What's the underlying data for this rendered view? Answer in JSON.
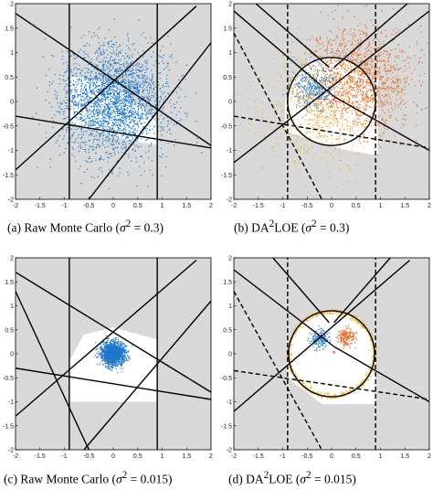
{
  "chart_data": [
    {
      "type": "scatter",
      "caption_prefix": "(a) Raw Monte Carlo (",
      "caption_var": "σ",
      "caption_sup": "2",
      "caption_suffix": " = 0.3)",
      "xlim": [
        -2,
        2
      ],
      "ylim": [
        -2,
        2
      ],
      "xticks": [
        "-2",
        "-1.5",
        "-1",
        "-0.5",
        "0",
        "0.5",
        "1",
        "1.5",
        "2"
      ],
      "yticks": [
        "-2",
        "-1.5",
        "-1",
        "-0.5",
        "0",
        "0.5",
        "1",
        "1.5",
        "2"
      ],
      "shade_color": "#d9d9d9",
      "polygon": [
        [
          -0.9,
          0.52
        ],
        [
          -0.9,
          -0.42
        ],
        [
          0.42,
          -0.82
        ],
        [
          0.9,
          -0.88
        ],
        [
          0.9,
          -0.45
        ],
        [
          0.05,
          0.35
        ]
      ],
      "lines": [
        {
          "p1": [
            -0.9,
            -2
          ],
          "p2": [
            -0.9,
            2
          ],
          "style": "solid"
        },
        {
          "p1": [
            0.9,
            -2
          ],
          "p2": [
            0.9,
            2
          ],
          "style": "solid"
        },
        {
          "p1": [
            -2,
            -0.3
          ],
          "p2": [
            2,
            -0.95
          ],
          "style": "solid"
        },
        {
          "p1": [
            -2,
            1.8
          ],
          "p2": [
            2,
            -0.9
          ],
          "style": "solid"
        },
        {
          "p1": [
            -2,
            -1.4
          ],
          "p2": [
            1.7,
            1.95
          ],
          "style": "solid"
        },
        {
          "p1": [
            -0.5,
            -2
          ],
          "p2": [
            2,
            1.2
          ],
          "style": "solid"
        }
      ],
      "clouds": [
        {
          "color": "#1f77c9",
          "center": [
            0,
            0
          ],
          "std": 0.55,
          "count": 2600,
          "seed": 7
        }
      ],
      "circle": null,
      "marker": null
    },
    {
      "type": "scatter",
      "caption_prefix": "(b) DA",
      "caption_sup_pre": "2",
      "caption_mid": "LOE   (",
      "caption_var": "σ",
      "caption_sup": "2",
      "caption_suffix": " = 0.3)",
      "xlim": [
        -2,
        2
      ],
      "ylim": [
        -2,
        2
      ],
      "xticks": [
        "-2",
        "-1.5",
        "-1",
        "-0.5",
        "0",
        "0.5",
        "1",
        "1.5",
        "2"
      ],
      "yticks": [
        "-2",
        "-1.5",
        "-1",
        "-0.5",
        "0",
        "0.5",
        "1",
        "1.5",
        "2"
      ],
      "shade_color": "#d9d9d9",
      "polygon": [
        [
          -0.95,
          -0.62
        ],
        [
          -0.95,
          0.05
        ],
        [
          0.0,
          0.0
        ],
        [
          0.0,
          0.6
        ],
        [
          0.0,
          0.0
        ],
        [
          0.95,
          0.52
        ],
        [
          0.95,
          -1.1
        ],
        [
          0.3,
          -1.0
        ]
      ],
      "lines": [
        {
          "p1": [
            -0.9,
            -2
          ],
          "p2": [
            -0.9,
            2
          ],
          "style": "dashed"
        },
        {
          "p1": [
            0.9,
            -2
          ],
          "p2": [
            0.9,
            2
          ],
          "style": "dashed"
        },
        {
          "p1": [
            -2,
            -0.3
          ],
          "p2": [
            2,
            -0.95
          ],
          "style": "dashed"
        },
        {
          "p1": [
            -2,
            1.4
          ],
          "p2": [
            -0.2,
            -2
          ],
          "style": "dashed"
        },
        {
          "p1": [
            -2,
            -1.25
          ],
          "p2": [
            2,
            1.85
          ],
          "style": "solid"
        },
        {
          "p1": [
            -2,
            1.85
          ],
          "p2": [
            0.05,
            0.1
          ],
          "style": "solid"
        },
        {
          "p1": [
            0.05,
            0.1
          ],
          "p2": [
            2,
            -1.0
          ],
          "style": "solid"
        },
        {
          "p1": [
            -1.55,
            2
          ],
          "p2": [
            -0.05,
            0.7
          ],
          "style": "solid"
        },
        {
          "p1": [
            1.55,
            2
          ],
          "p2": [
            0.05,
            0.7
          ],
          "style": "solid"
        }
      ],
      "clouds": [
        {
          "color": "#e36a2a",
          "center": [
            0.55,
            0.45
          ],
          "std": 0.55,
          "count": 1500,
          "seed": 11
        },
        {
          "color": "#2a7fc9",
          "center": [
            -0.35,
            0.25
          ],
          "std": 0.22,
          "count": 380,
          "seed": 13
        },
        {
          "color": "#f0b73a",
          "center": [
            -0.3,
            -0.2
          ],
          "std": 0.6,
          "count": 700,
          "seed": 17
        }
      ],
      "circle": {
        "center": [
          0,
          0
        ],
        "r": 0.9
      },
      "marker": {
        "at": [
          0.05,
          0.0
        ],
        "color": "#d62728"
      }
    },
    {
      "type": "scatter",
      "caption_prefix": "(c) Raw Monte Carlo (",
      "caption_var": "σ",
      "caption_sup": "2",
      "caption_suffix": " = 0.015)",
      "xlim": [
        -2,
        2
      ],
      "ylim": [
        -2,
        2
      ],
      "xticks": [
        "-2",
        "-1.5",
        "-1",
        "-0.5",
        "0",
        "0.5",
        "1",
        "1.5",
        "2"
      ],
      "yticks": [
        "-2",
        "-1.5",
        "-1",
        "-0.5",
        "0",
        "0.5",
        "1",
        "1.5",
        "2"
      ],
      "shade_color": "#d9d9d9",
      "polygon": [
        [
          -0.9,
          -0.15
        ],
        [
          -0.6,
          0.4
        ],
        [
          0.0,
          0.55
        ],
        [
          0.9,
          0.3
        ],
        [
          0.9,
          -1.0
        ],
        [
          -0.9,
          -1.0
        ]
      ],
      "lines": [
        {
          "p1": [
            -0.9,
            -2
          ],
          "p2": [
            -0.9,
            2
          ],
          "style": "solid"
        },
        {
          "p1": [
            0.9,
            -2
          ],
          "p2": [
            0.9,
            2
          ],
          "style": "solid"
        },
        {
          "p1": [
            -2,
            -0.3
          ],
          "p2": [
            2,
            -0.95
          ],
          "style": "solid"
        },
        {
          "p1": [
            -2,
            1.7
          ],
          "p2": [
            2,
            -0.8
          ],
          "style": "solid"
        },
        {
          "p1": [
            -2,
            -1.3
          ],
          "p2": [
            1.7,
            1.95
          ],
          "style": "solid"
        },
        {
          "p1": [
            -0.6,
            -2
          ],
          "p2": [
            2,
            1.1
          ],
          "style": "solid"
        },
        {
          "p1": [
            -2,
            1.3
          ],
          "p2": [
            -0.5,
            -2
          ],
          "style": "solid"
        }
      ],
      "clouds": [
        {
          "color": "#1f77c9",
          "center": [
            0,
            0
          ],
          "std": 0.12,
          "count": 1400,
          "seed": 19
        }
      ],
      "circle": null,
      "marker": null
    },
    {
      "type": "scatter",
      "caption_prefix": "(d) DA",
      "caption_sup_pre": "2",
      "caption_mid": "LOE   (",
      "caption_var": "σ",
      "caption_sup": "2",
      "caption_suffix": " = 0.015)",
      "xlim": [
        -2,
        2
      ],
      "ylim": [
        -2,
        2
      ],
      "xticks": [
        "-2",
        "-1.5",
        "-1",
        "-0.5",
        "0",
        "0.5",
        "1",
        "1.5",
        "2"
      ],
      "yticks": [
        "-2",
        "-1.5",
        "-1",
        "-0.5",
        "0",
        "0.5",
        "1",
        "1.5",
        "2"
      ],
      "shade_color": "#d9d9d9",
      "polygon": [
        [
          -0.9,
          -0.5
        ],
        [
          -0.9,
          0.0
        ],
        [
          0.0,
          0.0
        ],
        [
          0.0,
          0.55
        ],
        [
          0.0,
          0.0
        ],
        [
          0.9,
          0.0
        ],
        [
          0.9,
          -1.05
        ],
        [
          -0.2,
          -1.05
        ]
      ],
      "lines": [
        {
          "p1": [
            -0.9,
            -2
          ],
          "p2": [
            -0.9,
            2
          ],
          "style": "dashed"
        },
        {
          "p1": [
            0.9,
            -2
          ],
          "p2": [
            0.9,
            2
          ],
          "style": "dashed"
        },
        {
          "p1": [
            -2,
            -0.35
          ],
          "p2": [
            2,
            -0.95
          ],
          "style": "dashed"
        },
        {
          "p1": [
            -2,
            1.3
          ],
          "p2": [
            -0.2,
            -2
          ],
          "style": "dashed"
        },
        {
          "p1": [
            -2,
            -1.2
          ],
          "p2": [
            1.6,
            1.95
          ],
          "style": "solid"
        },
        {
          "p1": [
            -2,
            1.75
          ],
          "p2": [
            0.05,
            0.15
          ],
          "style": "solid"
        },
        {
          "p1": [
            0.05,
            0.15
          ],
          "p2": [
            2,
            -1.0
          ],
          "style": "solid"
        },
        {
          "p1": [
            -1.2,
            2
          ],
          "p2": [
            -0.05,
            0.65
          ],
          "style": "solid"
        },
        {
          "p1": [
            1.2,
            2
          ],
          "p2": [
            0.05,
            0.65
          ],
          "style": "solid"
        }
      ],
      "clouds": [
        {
          "color": "#2a7fc9",
          "center": [
            -0.25,
            0.3
          ],
          "std": 0.09,
          "count": 180,
          "seed": 23
        },
        {
          "color": "#e36a2a",
          "center": [
            0.28,
            0.35
          ],
          "std": 0.09,
          "count": 180,
          "seed": 29
        }
      ],
      "ring": {
        "center": [
          0,
          0
        ],
        "r": 0.88,
        "color": "#f0b73a",
        "count": 700,
        "seed": 31
      },
      "circle": {
        "center": [
          0,
          0
        ],
        "r": 0.88
      },
      "marker": {
        "at": [
          0.05,
          0.0
        ],
        "color": "#d62728"
      }
    }
  ]
}
